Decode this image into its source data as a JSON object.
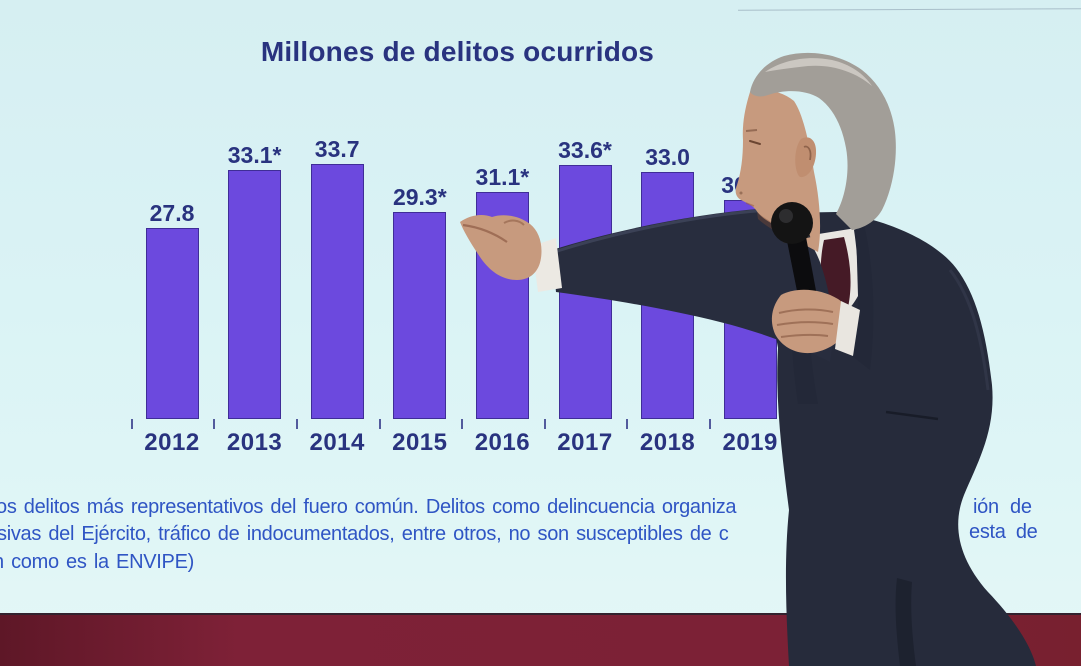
{
  "chart_data": {
    "type": "bar",
    "title": "Millones de delitos ocurridos",
    "categories": [
      "2012",
      "2013",
      "2014",
      "2015",
      "2016",
      "2017",
      "2018",
      "2019"
    ],
    "values": [
      27.8,
      33.1,
      33.7,
      29.3,
      31.1,
      33.6,
      33.0,
      30.4
    ],
    "bar_labels": [
      "27.8",
      "33.1*",
      "33.7",
      "29.3*",
      "31.1*",
      "33.6*",
      "33.0",
      "30."
    ],
    "last_label_occluded_by_presenter": true,
    "xlabel": "",
    "ylabel": "",
    "grid": false,
    "legend": null,
    "bar_color": "#6c49de",
    "text_color": "#29337f"
  },
  "footnote": {
    "color": "#2f55c4",
    "lines": [
      {
        "left": "os delitos más representativos del fuero común. Delitos como delincuencia organiza",
        "right": "ión de"
      },
      {
        "left": "sivas del Ejército, tráfico de indocumentados, entre otros, no son susceptibles de c",
        "right": "esta de"
      },
      {
        "left": "n como es la ENVIPE)",
        "right": ""
      }
    ]
  },
  "scene": {
    "screen_background_color": "#daf3f5",
    "backdrop_band_color": "#7c2136",
    "presenter_description": "Man in dark navy suit seen in profile, holding a microphone and pointing left at the chart"
  }
}
